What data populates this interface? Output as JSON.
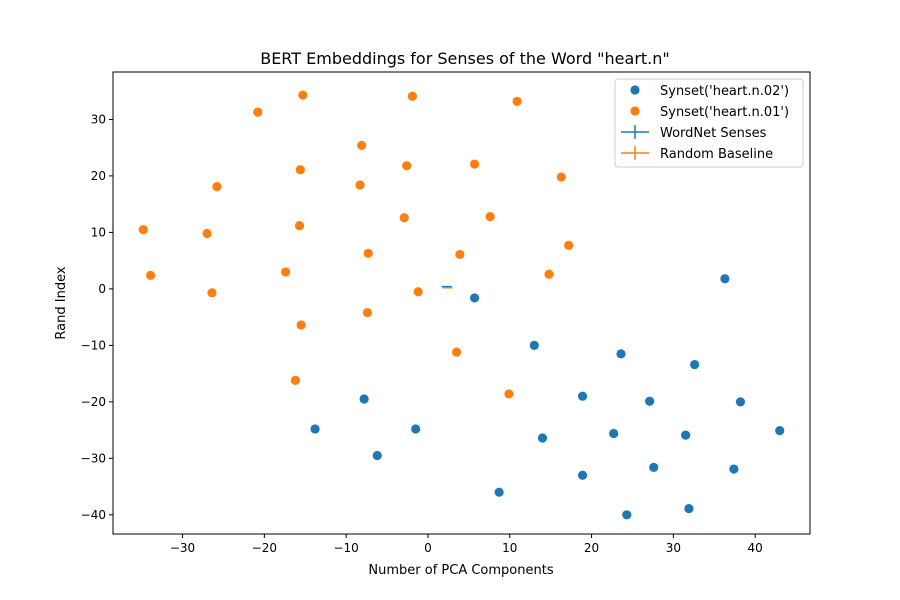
{
  "chart_data": {
    "type": "scatter",
    "title": "BERT Embeddings for Senses of the Word \"heart.n\"",
    "xlabel": "Number of PCA Components",
    "ylabel": "Rand Index",
    "xlim": [
      -38.5,
      46.7
    ],
    "ylim": [
      -43.4,
      38.4
    ],
    "xticks": [
      -30,
      -20,
      -10,
      0,
      10,
      20,
      30,
      40
    ],
    "yticks": [
      -40,
      -30,
      -20,
      -10,
      0,
      10,
      20,
      30
    ],
    "xtick_labels": [
      "−30",
      "−20",
      "−10",
      "0",
      "10",
      "20",
      "30",
      "40"
    ],
    "ytick_labels": [
      "−40",
      "−30",
      "−20",
      "−10",
      "0",
      "10",
      "20",
      "30"
    ],
    "grid": false,
    "legend_position": "top-right",
    "series": [
      {
        "name": "Synset('heart.n.02')",
        "kind": "scatter",
        "color": "#1f77b4",
        "points": [
          [
            36.3,
            1.8
          ],
          [
            5.7,
            -1.6
          ],
          [
            13.0,
            -10.0
          ],
          [
            23.6,
            -11.5
          ],
          [
            32.6,
            -13.4
          ],
          [
            -7.8,
            -19.5
          ],
          [
            18.9,
            -19.0
          ],
          [
            27.1,
            -19.9
          ],
          [
            38.2,
            -20.0
          ],
          [
            -13.8,
            -24.8
          ],
          [
            -1.5,
            -24.8
          ],
          [
            14.0,
            -26.4
          ],
          [
            22.7,
            -25.6
          ],
          [
            31.5,
            -25.9
          ],
          [
            43.0,
            -25.1
          ],
          [
            -6.2,
            -29.5
          ],
          [
            18.9,
            -33.0
          ],
          [
            27.6,
            -31.6
          ],
          [
            37.4,
            -31.9
          ],
          [
            8.7,
            -36.0
          ],
          [
            24.3,
            -40.0
          ],
          [
            31.9,
            -38.9
          ]
        ]
      },
      {
        "name": "Synset('heart.n.01')",
        "kind": "scatter",
        "color": "#ff7f0e",
        "points": [
          [
            -20.8,
            31.3
          ],
          [
            -15.3,
            34.3
          ],
          [
            -1.9,
            34.1
          ],
          [
            10.9,
            33.2
          ],
          [
            -8.1,
            25.4
          ],
          [
            -15.6,
            21.1
          ],
          [
            -2.6,
            21.8
          ],
          [
            5.7,
            22.1
          ],
          [
            16.3,
            19.8
          ],
          [
            -25.8,
            18.1
          ],
          [
            -8.3,
            18.4
          ],
          [
            -2.9,
            12.6
          ],
          [
            7.6,
            12.8
          ],
          [
            -34.8,
            10.5
          ],
          [
            -27.0,
            9.8
          ],
          [
            -15.7,
            11.2
          ],
          [
            -7.3,
            6.3
          ],
          [
            3.9,
            6.1
          ],
          [
            17.2,
            7.7
          ],
          [
            -33.9,
            2.4
          ],
          [
            -17.4,
            3.0
          ],
          [
            14.8,
            2.6
          ],
          [
            -26.4,
            -0.7
          ],
          [
            -1.2,
            -0.5
          ],
          [
            -15.5,
            -6.4
          ],
          [
            -7.4,
            -4.2
          ],
          [
            3.5,
            -11.2
          ],
          [
            -16.2,
            -16.2
          ],
          [
            9.9,
            -18.6
          ]
        ]
      },
      {
        "name": "WordNet Senses",
        "kind": "errorbar",
        "color": "#1f77b4",
        "points": [
          [
            2.3,
            0.4
          ]
        ]
      },
      {
        "name": "Random Baseline",
        "kind": "errorbar",
        "color": "#ff7f0e",
        "points": [
          [
            2.4,
            0.2
          ]
        ]
      }
    ]
  }
}
